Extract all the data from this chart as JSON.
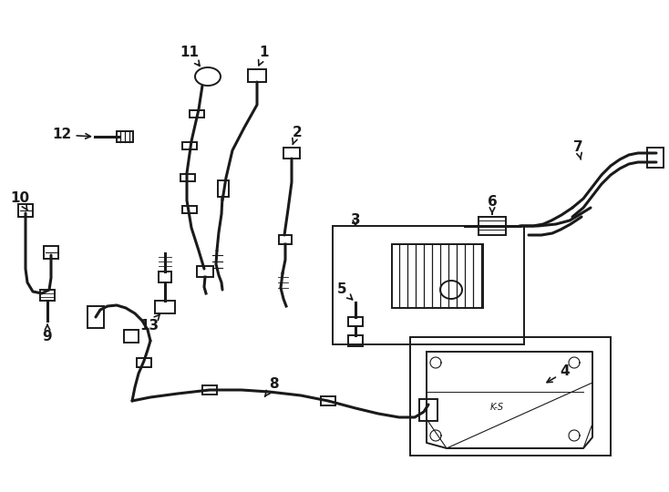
{
  "bg_color": "#ffffff",
  "lc": "#1a1a1a",
  "lw": 1.4,
  "lw_thick": 2.2,
  "figsize": [
    7.34,
    5.4
  ],
  "dpi": 100
}
